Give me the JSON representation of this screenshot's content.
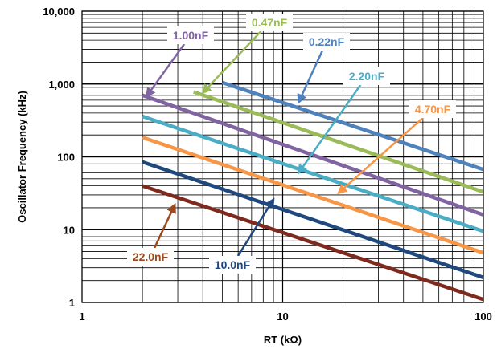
{
  "chart_data": {
    "type": "line",
    "title": "",
    "xlabel": "RT (kΩ)",
    "ylabel": "Oscillator Frequency (kHz)",
    "x_scale": "log",
    "y_scale": "log",
    "xlim": [
      1,
      100
    ],
    "ylim": [
      1,
      10000
    ],
    "x_ticks": [
      1,
      10,
      100
    ],
    "x_tick_labels": [
      "1",
      "10",
      "100"
    ],
    "y_ticks": [
      1,
      10,
      100,
      1000,
      10000
    ],
    "y_tick_labels": [
      "1",
      "10",
      "100",
      "1,000",
      "10,000"
    ],
    "grid": true,
    "legend": "none",
    "series": [
      {
        "name": "0.22nF",
        "color": "#4F81BD",
        "x": [
          5,
          100
        ],
        "y": [
          1050,
          67
        ]
      },
      {
        "name": "0.47nF",
        "color": "#9BBB59",
        "x": [
          3.6,
          100
        ],
        "y": [
          780,
          33
        ]
      },
      {
        "name": "1.00nF",
        "color": "#8064A2",
        "x": [
          2,
          100
        ],
        "y": [
          700,
          16
        ]
      },
      {
        "name": "2.20nF",
        "color": "#4BACC6",
        "x": [
          2,
          100
        ],
        "y": [
          360,
          9.5
        ]
      },
      {
        "name": "4.70nF",
        "color": "#F79646",
        "x": [
          2,
          100
        ],
        "y": [
          185,
          4.8
        ]
      },
      {
        "name": "10.0nF",
        "color": "#1F497D",
        "x": [
          2,
          100
        ],
        "y": [
          85,
          2.2
        ]
      },
      {
        "name": "22.0nF",
        "color": "#7F2A1E",
        "x": [
          2,
          100
        ],
        "y": [
          40,
          1.1
        ]
      }
    ],
    "annotations": [
      {
        "text": "1.00nF",
        "color": "#8064A2",
        "arrow_to": [
          2.1,
          680
        ]
      },
      {
        "text": "0.47nF",
        "color": "#9BBB59",
        "arrow_to": [
          4.0,
          760
        ]
      },
      {
        "text": "0.22nF",
        "color": "#4F81BD",
        "arrow_to": [
          12.0,
          560
        ]
      },
      {
        "text": "2.20nF",
        "color": "#4BACC6",
        "arrow_to": [
          12.0,
          60
        ]
      },
      {
        "text": "4.70nF",
        "color": "#F79646",
        "arrow_to": [
          19.0,
          32
        ]
      },
      {
        "text": "10.0nF",
        "color": "#1F497D",
        "arrow_to": [
          9.0,
          26
        ]
      },
      {
        "text": "22.0nF",
        "color": "#9A4A1E",
        "arrow_to": [
          2.9,
          22
        ]
      }
    ]
  }
}
